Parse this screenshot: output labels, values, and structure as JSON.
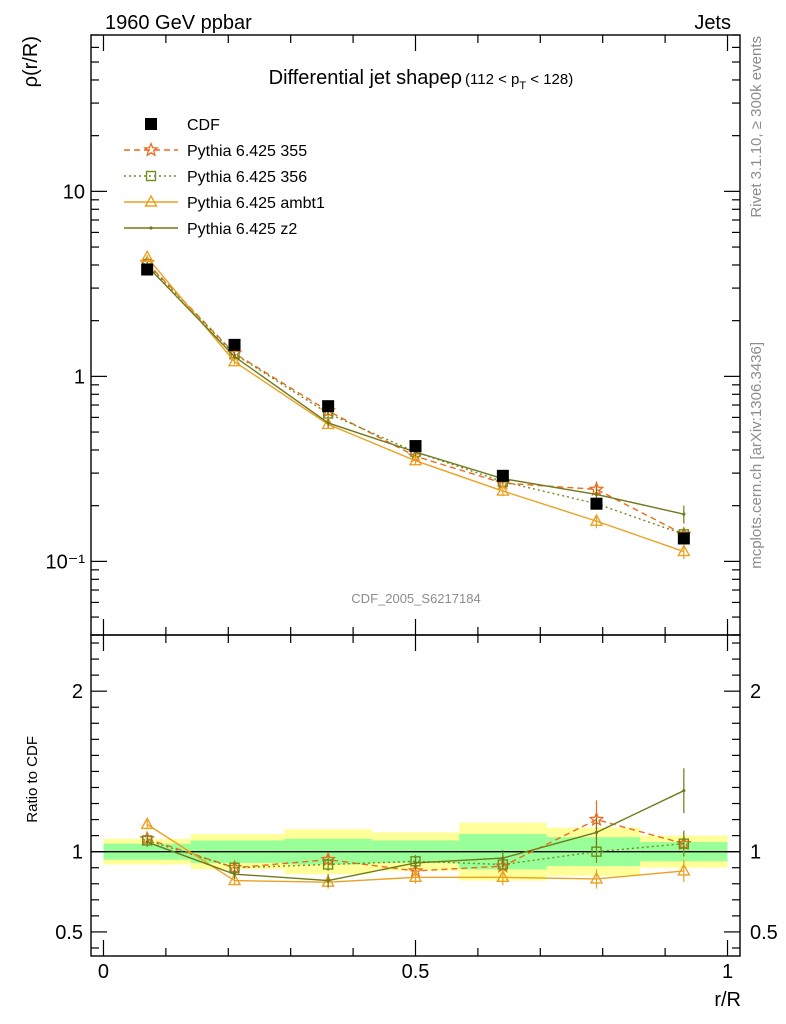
{
  "header": {
    "left": "1960 GeV ppbar",
    "right": "Jets"
  },
  "side_labels": {
    "rivet": "Rivet 3.1.10, ≥ 300k events",
    "mcplots": "mcplots.cern.ch [arXiv:1306.3436]"
  },
  "chart_data": {
    "type": "line",
    "title": "Differential jet shapeρ",
    "title_cut": {
      "pre": "(112 < p",
      "sub": "T",
      "post": " < 128)"
    },
    "watermark": "CDF_2005_S6217184",
    "xlabel": "r/R",
    "ylabel": "ρ(r/R)",
    "ratio_ylabel": "Ratio to CDF",
    "xlim": [
      -0.02,
      1.02
    ],
    "ylim": [
      0.04,
      70
    ],
    "yscale": "log",
    "ratio_ylim": [
      0.35,
      2.35
    ],
    "x_ticks": [
      "0",
      "0.5",
      "1"
    ],
    "y_ticks": [
      "10⁻¹",
      "1",
      "10"
    ],
    "ratio_ticks": [
      "0.5",
      "1",
      "2"
    ],
    "x": [
      0.07,
      0.21,
      0.36,
      0.5,
      0.64,
      0.79,
      0.93
    ],
    "x_edges": [
      0.0,
      0.14,
      0.29,
      0.43,
      0.57,
      0.71,
      0.86,
      1.0
    ],
    "band_inner": [
      0.05,
      0.07,
      0.08,
      0.07,
      0.11,
      0.09,
      0.06
    ],
    "band_outer": [
      0.08,
      0.11,
      0.14,
      0.12,
      0.18,
      0.15,
      0.1
    ],
    "legend_position": "top-left",
    "series": [
      {
        "name": "CDF",
        "color": "#000000",
        "marker": "square-filled",
        "line": "none",
        "values": [
          3.78,
          1.48,
          0.69,
          0.42,
          0.29,
          0.205,
          0.133
        ]
      },
      {
        "name": "Pythia 6.425 355",
        "color": "#ee6a1c",
        "marker": "star-open",
        "line": "dashed",
        "values": [
          4.1,
          1.33,
          0.65,
          0.37,
          0.265,
          0.245,
          0.14
        ],
        "errors": [
          0.12,
          0.04,
          0.03,
          0.02,
          0.015,
          0.025,
          0.012
        ],
        "ratio": [
          1.08,
          0.9,
          0.95,
          0.88,
          0.91,
          1.2,
          1.05
        ],
        "ratio_err": [
          0.03,
          0.03,
          0.04,
          0.04,
          0.05,
          0.12,
          0.08
        ]
      },
      {
        "name": "Pythia 6.425 356",
        "color": "#6e8e1e",
        "marker": "square-open",
        "line": "dotted",
        "values": [
          4.05,
          1.32,
          0.63,
          0.39,
          0.27,
          0.205,
          0.14
        ],
        "errors": [
          0.12,
          0.04,
          0.03,
          0.02,
          0.015,
          0.015,
          0.012
        ],
        "ratio": [
          1.07,
          0.9,
          0.92,
          0.94,
          0.92,
          1.0,
          1.05
        ],
        "ratio_err": [
          0.03,
          0.03,
          0.04,
          0.04,
          0.05,
          0.07,
          0.08
        ]
      },
      {
        "name": "Pythia 6.425 ambt1",
        "color": "#eba121",
        "marker": "triangle-open",
        "line": "solid",
        "values": [
          4.4,
          1.2,
          0.55,
          0.35,
          0.24,
          0.165,
          0.113
        ],
        "errors": [
          0.13,
          0.04,
          0.03,
          0.02,
          0.015,
          0.014,
          0.01
        ],
        "ratio": [
          1.17,
          0.82,
          0.81,
          0.84,
          0.84,
          0.83,
          0.88
        ],
        "ratio_err": [
          0.03,
          0.03,
          0.04,
          0.04,
          0.05,
          0.06,
          0.07
        ]
      },
      {
        "name": "Pythia 6.425 z2",
        "color": "#707a1a",
        "marker": "dot",
        "line": "solid",
        "values": [
          3.95,
          1.28,
          0.56,
          0.39,
          0.28,
          0.23,
          0.18
        ],
        "errors": [
          0.12,
          0.04,
          0.03,
          0.02,
          0.015,
          0.02,
          0.02
        ],
        "ratio": [
          1.06,
          0.86,
          0.82,
          0.93,
          0.96,
          1.12,
          1.38
        ],
        "ratio_err": [
          0.03,
          0.03,
          0.04,
          0.04,
          0.05,
          0.09,
          0.14
        ]
      }
    ]
  }
}
